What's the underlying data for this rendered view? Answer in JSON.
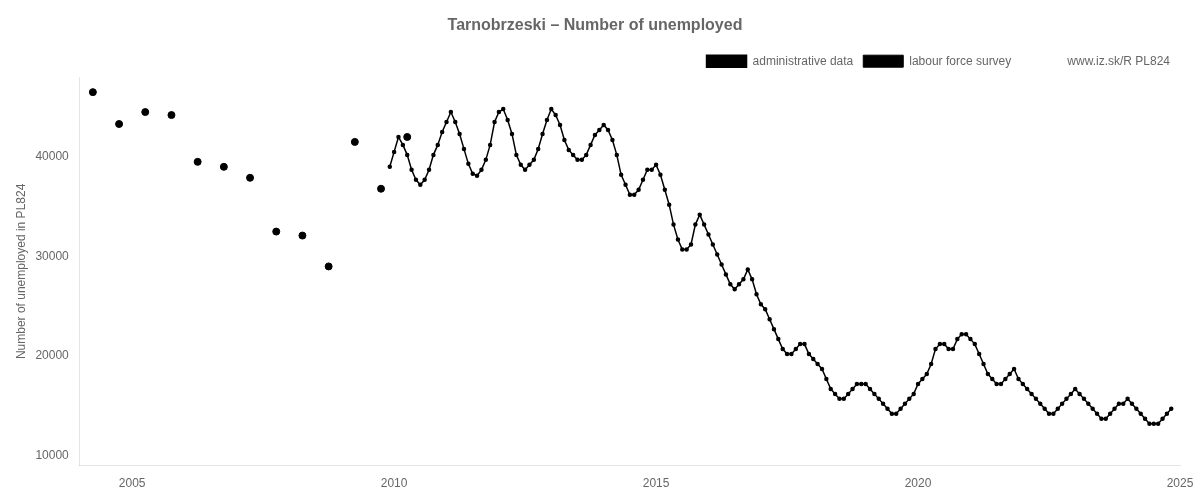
{
  "chart_data": {
    "type": "line",
    "title": "Tarnobrzeski – Number of unemployed",
    "ylabel": "Number of unemployed in PL824",
    "xlim": [
      2004.0,
      2025.0
    ],
    "ylim": [
      9000,
      48000
    ],
    "xticks": [
      2005,
      2010,
      2015,
      2020,
      2025
    ],
    "yticks": [
      10000,
      20000,
      30000,
      40000
    ],
    "grid": false,
    "legend": "upper right",
    "annotations": [
      "www.iz.sk/R PL824"
    ],
    "series": [
      {
        "name": "administrative data",
        "type": "line",
        "color": "#000000",
        "marker": "circle",
        "line_style": "solid",
        "x": [
          2009.917,
          2010.0,
          2010.083,
          2010.167,
          2010.25,
          2010.333,
          2010.417,
          2010.5,
          2010.583,
          2010.667,
          2010.75,
          2010.833,
          2010.917,
          2011.0,
          2011.083,
          2011.167,
          2011.25,
          2011.333,
          2011.417,
          2011.5,
          2011.583,
          2011.667,
          2011.75,
          2011.833,
          2011.917,
          2012.0,
          2012.083,
          2012.167,
          2012.25,
          2012.333,
          2012.417,
          2012.5,
          2012.583,
          2012.667,
          2012.75,
          2012.833,
          2012.917,
          2013.0,
          2013.083,
          2013.167,
          2013.25,
          2013.333,
          2013.417,
          2013.5,
          2013.583,
          2013.667,
          2013.75,
          2013.833,
          2013.917,
          2014.0,
          2014.083,
          2014.167,
          2014.25,
          2014.333,
          2014.417,
          2014.5,
          2014.583,
          2014.667,
          2014.75,
          2014.833,
          2014.917,
          2015.0,
          2015.083,
          2015.167,
          2015.25,
          2015.333,
          2015.417,
          2015.5,
          2015.583,
          2015.667,
          2015.75,
          2015.833,
          2015.917,
          2016.0,
          2016.083,
          2016.167,
          2016.25,
          2016.333,
          2016.417,
          2016.5,
          2016.583,
          2016.667,
          2016.75,
          2016.833,
          2016.917,
          2017.0,
          2017.083,
          2017.167,
          2017.25,
          2017.333,
          2017.417,
          2017.5,
          2017.583,
          2017.667,
          2017.75,
          2017.833,
          2017.917,
          2018.0,
          2018.083,
          2018.167,
          2018.25,
          2018.333,
          2018.417,
          2018.5,
          2018.583,
          2018.667,
          2018.75,
          2018.833,
          2018.917,
          2019.0,
          2019.083,
          2019.167,
          2019.25,
          2019.333,
          2019.417,
          2019.5,
          2019.583,
          2019.667,
          2019.75,
          2019.833,
          2019.917,
          2020.0,
          2020.083,
          2020.167,
          2020.25,
          2020.333,
          2020.417,
          2020.5,
          2020.583,
          2020.667,
          2020.75,
          2020.833,
          2020.917,
          2021.0,
          2021.083,
          2021.167,
          2021.25,
          2021.333,
          2021.417,
          2021.5,
          2021.583,
          2021.667,
          2021.75,
          2021.833,
          2021.917,
          2022.0,
          2022.083,
          2022.167,
          2022.25,
          2022.333,
          2022.417,
          2022.5,
          2022.583,
          2022.667,
          2022.75,
          2022.833,
          2022.917,
          2023.0,
          2023.083,
          2023.167,
          2023.25,
          2023.333,
          2023.417,
          2023.5,
          2023.583,
          2023.667,
          2023.75,
          2023.833,
          2023.917,
          2024.0,
          2024.083,
          2024.167,
          2024.25,
          2024.333,
          2024.417,
          2024.5,
          2024.583,
          2024.667,
          2024.75,
          2024.833
        ],
        "values": [
          39000,
          40500,
          42000,
          41200,
          40200,
          38700,
          37700,
          37200,
          37700,
          38700,
          40200,
          41200,
          42500,
          43500,
          44500,
          43500,
          42300,
          40800,
          39300,
          38300,
          38100,
          38700,
          39700,
          41200,
          43500,
          44500,
          44800,
          43700,
          42300,
          40200,
          39200,
          38700,
          39200,
          39700,
          40800,
          42300,
          43700,
          44800,
          44200,
          43200,
          41700,
          40700,
          40200,
          39700,
          39700,
          40200,
          41200,
          42200,
          42700,
          43200,
          42700,
          41700,
          40200,
          38200,
          37200,
          36200,
          36200,
          36700,
          37700,
          38700,
          38700,
          39200,
          38200,
          36700,
          35200,
          33200,
          31700,
          30700,
          30700,
          31200,
          33200,
          34200,
          33200,
          32200,
          31200,
          30200,
          29200,
          28200,
          27200,
          26700,
          27200,
          27700,
          28700,
          27700,
          26200,
          25200,
          24700,
          23700,
          22700,
          21700,
          20700,
          20200,
          20200,
          20700,
          21200,
          21200,
          20200,
          19700,
          19200,
          18700,
          17700,
          16700,
          16200,
          15700,
          15700,
          16200,
          16700,
          17200,
          17200,
          17200,
          16700,
          16200,
          15700,
          15200,
          14700,
          14200,
          14200,
          14700,
          15200,
          15700,
          16200,
          17200,
          17700,
          18200,
          19200,
          20700,
          21200,
          21200,
          20700,
          20700,
          21700,
          22200,
          22200,
          21700,
          21200,
          20200,
          19200,
          18200,
          17700,
          17200,
          17200,
          17700,
          18200,
          18700,
          17700,
          17200,
          16700,
          16200,
          15700,
          15200,
          14700,
          14200,
          14200,
          14700,
          15200,
          15700,
          16200,
          16700,
          16200,
          15700,
          15200,
          14700,
          14200,
          13700,
          13700,
          14200,
          14700,
          15200,
          15200,
          15700,
          15200,
          14700,
          14200,
          13700,
          13200,
          13200,
          13200,
          13700,
          14200,
          14700
        ]
      },
      {
        "name": "labour force survey",
        "type": "scatter",
        "color": "#000000",
        "marker": "circle",
        "x": [
          2004.25,
          2004.75,
          2005.25,
          2005.75,
          2006.25,
          2006.75,
          2007.25,
          2007.75,
          2008.25,
          2008.75,
          2009.25,
          2009.75,
          2010.25
        ],
        "values": [
          46500,
          43300,
          44500,
          44200,
          39500,
          39000,
          37900,
          32500,
          32100,
          29000,
          41500,
          36800,
          42000
        ]
      }
    ]
  }
}
